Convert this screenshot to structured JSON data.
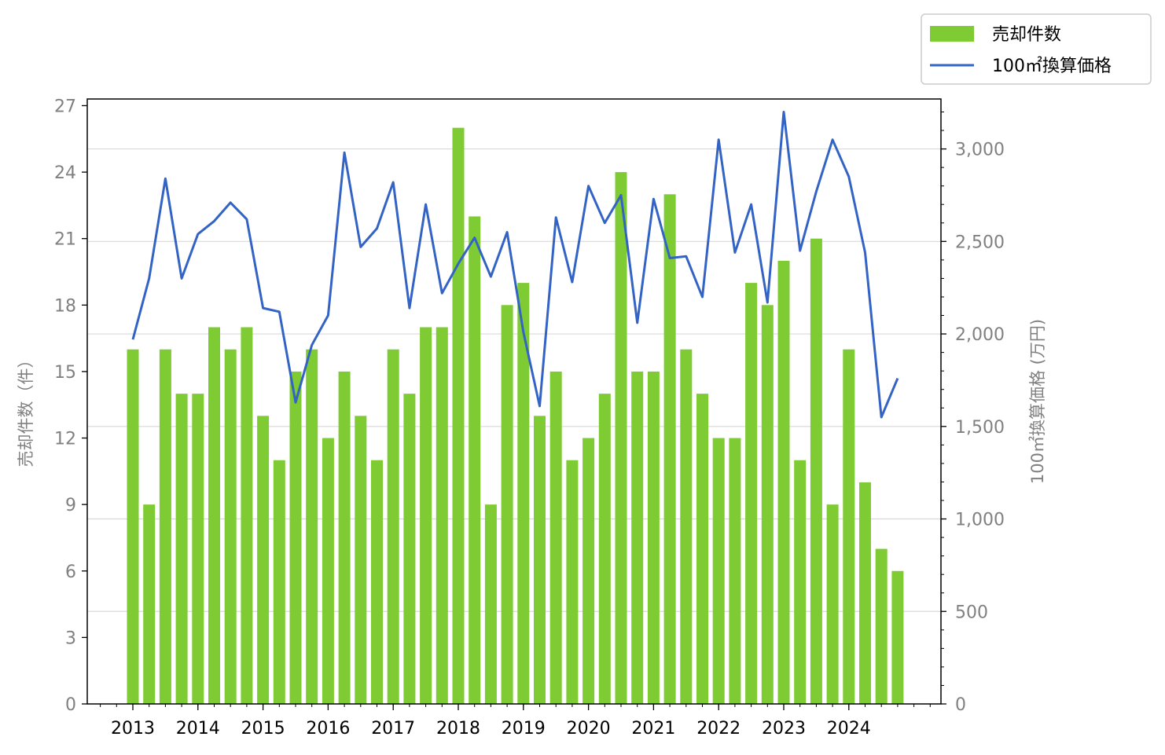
{
  "chart_data": {
    "type": "bar",
    "title": "",
    "xlabel": "",
    "ylabel": "売却件数（件）",
    "y2label": "100㎡換算価格 (万円)",
    "x_tick_labels": [
      "2013",
      "2014",
      "2015",
      "2016",
      "2017",
      "2018",
      "2019",
      "2020",
      "2021",
      "2022",
      "2023",
      "2024"
    ],
    "quarters": [
      "2013Q1",
      "2013Q2",
      "2013Q3",
      "2013Q4",
      "2014Q1",
      "2014Q2",
      "2014Q3",
      "2014Q4",
      "2015Q1",
      "2015Q2",
      "2015Q3",
      "2015Q4",
      "2016Q1",
      "2016Q2",
      "2016Q3",
      "2016Q4",
      "2017Q1",
      "2017Q2",
      "2017Q3",
      "2017Q4",
      "2018Q1",
      "2018Q2",
      "2018Q3",
      "2018Q4",
      "2019Q1",
      "2019Q2",
      "2019Q3",
      "2019Q4",
      "2020Q1",
      "2020Q2",
      "2020Q3",
      "2020Q4",
      "2021Q1",
      "2021Q2",
      "2021Q3",
      "2021Q4",
      "2022Q1",
      "2022Q2",
      "2022Q3",
      "2022Q4",
      "2023Q1",
      "2023Q2",
      "2023Q3",
      "2023Q4",
      "2024Q1",
      "2024Q2",
      "2024Q3",
      "2024Q4"
    ],
    "y_ticks": [
      0,
      3,
      6,
      9,
      12,
      15,
      18,
      21,
      24,
      27
    ],
    "y2_ticks": [
      0,
      500,
      1000,
      1500,
      2000,
      2500,
      3000
    ],
    "y2_tick_labels": [
      "0",
      "500",
      "1,000",
      "1,500",
      "2,000",
      "2,500",
      "3,000"
    ],
    "ylim": [
      0,
      27.3
    ],
    "y2lim": [
      0,
      3270
    ],
    "grid": true,
    "legend_position": "top-right",
    "colors": {
      "bars": "#7fcb34",
      "line": "#3363c4",
      "grid": "#d9d9d9"
    },
    "series": [
      {
        "name": "売却件数",
        "type": "bar",
        "axis": "left",
        "values": [
          16,
          9,
          16,
          14,
          14,
          17,
          16,
          17,
          13,
          11,
          15,
          16,
          12,
          15,
          13,
          11,
          16,
          14,
          17,
          17,
          26,
          22,
          9,
          18,
          19,
          13,
          15,
          11,
          12,
          14,
          24,
          15,
          15,
          23,
          16,
          14,
          12,
          12,
          19,
          18,
          20,
          11,
          21,
          9,
          16,
          10,
          7,
          6
        ]
      },
      {
        "name": "100㎡換算価格",
        "type": "line",
        "axis": "right",
        "values": [
          1970,
          2300,
          2840,
          2300,
          2540,
          2610,
          2710,
          2620,
          2140,
          2120,
          1630,
          1940,
          2100,
          2980,
          2470,
          2570,
          2820,
          2140,
          2700,
          2220,
          2380,
          2520,
          2310,
          2550,
          2010,
          1610,
          2630,
          2280,
          2800,
          2600,
          2750,
          2060,
          2730,
          2410,
          2420,
          2200,
          3050,
          2440,
          2700,
          2170,
          3200,
          2450,
          2770,
          3050,
          2850,
          2440,
          1550,
          1760
        ]
      }
    ]
  }
}
